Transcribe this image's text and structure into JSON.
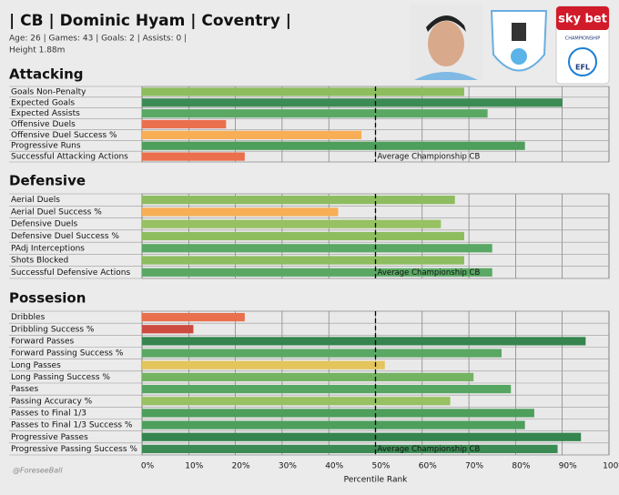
{
  "header": {
    "title": "| CB | Dominic Hyam | Coventry |",
    "meta": "Age: 26 | Games: 43 | Goals: 2 | Assists: 0 |",
    "height": "Height 1.88m",
    "watermark": "@ForeseeBall",
    "sponsor": {
      "brand": "sky bet",
      "league": "CHAMPIONSHIP",
      "org": "EFL"
    }
  },
  "chart_data": [
    {
      "type": "bar",
      "orientation": "horizontal",
      "title": "Attacking",
      "categories": [
        "Goals Non-Penalty",
        "Expected Goals",
        "Expected Assists",
        "Offensive Duels",
        "Offensive Duel Success %",
        "Progressive Runs",
        "Successful Attacking Actions"
      ],
      "values": [
        69,
        90,
        74,
        18,
        47,
        82,
        22
      ],
      "colors": [
        "#8dbd5e",
        "#3d8b54",
        "#5aa864",
        "#ea6f4d",
        "#f7ae55",
        "#4e9e5c",
        "#ea6f4d"
      ],
      "xlim": [
        0,
        100
      ],
      "reference_line": {
        "value": 50,
        "label": "Average Championship CB"
      }
    },
    {
      "type": "bar",
      "orientation": "horizontal",
      "title": "Defensive",
      "categories": [
        "Aerial Duels",
        "Aerial Duel Success %",
        "Defensive Duels",
        "Defensive Duel Success %",
        "PAdj Interceptions",
        "Shots Blocked",
        "Successful Defensive Actions"
      ],
      "values": [
        67,
        42,
        64,
        69,
        75,
        69,
        75
      ],
      "colors": [
        "#8dbd5e",
        "#f7ae55",
        "#97c162",
        "#8dbd5e",
        "#5aa864",
        "#8dbd5e",
        "#5aa864"
      ],
      "xlim": [
        0,
        100
      ],
      "reference_line": {
        "value": 50,
        "label": "Average Championship CB"
      }
    },
    {
      "type": "bar",
      "orientation": "horizontal",
      "title": "Possesion",
      "categories": [
        "Dribbles",
        "Dribbling Success %",
        "Forward Passes",
        "Forward Passing Success %",
        "Long Passes",
        "Long Passing Success %",
        "Passes",
        "Passing Accuracy %",
        "Passes to Final 1/3",
        "Passes to Final 1/3 Success %",
        "Progressive Passes",
        "Progressive Passing Success %"
      ],
      "values": [
        22,
        11,
        95,
        77,
        52,
        71,
        79,
        66,
        84,
        82,
        94,
        89
      ],
      "colors": [
        "#ea6f4d",
        "#cc4a3e",
        "#36844e",
        "#5aa864",
        "#e3c55c",
        "#74b362",
        "#56a662",
        "#97c162",
        "#4e9e5c",
        "#4e9e5c",
        "#36844e",
        "#3d8b54"
      ],
      "xlim": [
        0,
        100
      ],
      "xticks": [
        {
          "value": 0,
          "label": "0%"
        },
        {
          "value": 10,
          "label": "10%"
        },
        {
          "value": 20,
          "label": "20%"
        },
        {
          "value": 30,
          "label": "30%"
        },
        {
          "value": 40,
          "label": "40%"
        },
        {
          "value": 50,
          "label": "50%"
        },
        {
          "value": 60,
          "label": "60%"
        },
        {
          "value": 70,
          "label": "70%"
        },
        {
          "value": 80,
          "label": "80%"
        },
        {
          "value": 90,
          "label": "90%"
        },
        {
          "value": 100,
          "label": "100%"
        }
      ],
      "xlabel": "Percentile Rank",
      "reference_line": {
        "value": 50,
        "label": "Average Championship CB"
      }
    }
  ]
}
